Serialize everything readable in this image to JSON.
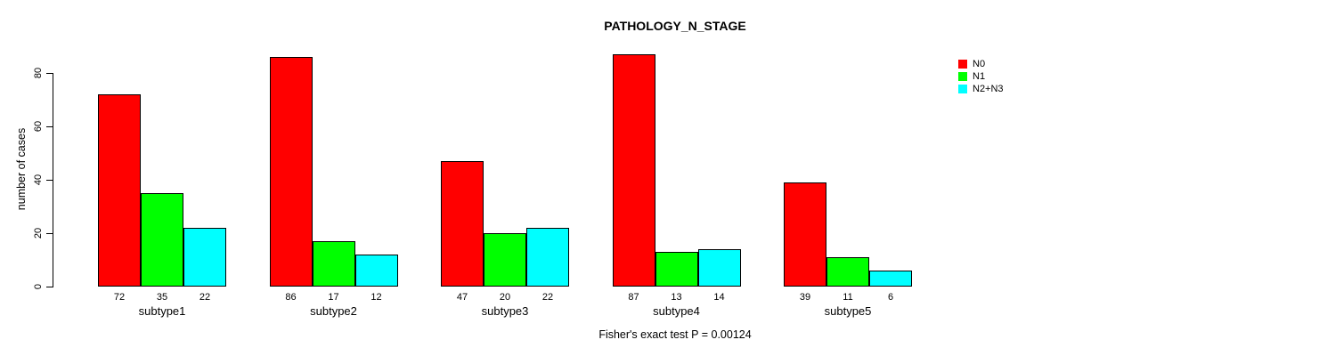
{
  "title": "PATHOLOGY_N_STAGE",
  "y_axis_label": "number of cases",
  "footer_note": "Fisher's exact test P = 0.00124",
  "legend": {
    "items": [
      {
        "label": "N0",
        "color": "#FF0000"
      },
      {
        "label": "N1",
        "color": "#00FF00"
      },
      {
        "label": "N2+N3",
        "color": "#00FFFF"
      }
    ]
  },
  "chart_data": {
    "type": "bar",
    "title": "PATHOLOGY_N_STAGE",
    "xlabel": "",
    "ylabel": "number of cases",
    "categories": [
      "subtype1",
      "subtype2",
      "subtype3",
      "subtype4",
      "subtype5"
    ],
    "series": [
      {
        "name": "N0",
        "color": "#FF0000",
        "values": [
          72,
          86,
          47,
          87,
          39
        ]
      },
      {
        "name": "N1",
        "color": "#00FF00",
        "values": [
          35,
          17,
          20,
          13,
          11
        ]
      },
      {
        "name": "N2+N3",
        "color": "#00FFFF",
        "values": [
          22,
          12,
          22,
          14,
          6
        ]
      }
    ],
    "bar_value_labels": [
      [
        72,
        35,
        22
      ],
      [
        86,
        17,
        12
      ],
      [
        47,
        20,
        22
      ],
      [
        87,
        13,
        14
      ],
      [
        39,
        11,
        6
      ]
    ],
    "yticks": [
      0,
      20,
      40,
      60,
      80
    ],
    "ylim": [
      0,
      80
    ],
    "grid": false,
    "grouped": true,
    "bar_border_color": "#000000",
    "legend_position": "top-right",
    "annotation": "Fisher's exact test P = 0.00124"
  }
}
